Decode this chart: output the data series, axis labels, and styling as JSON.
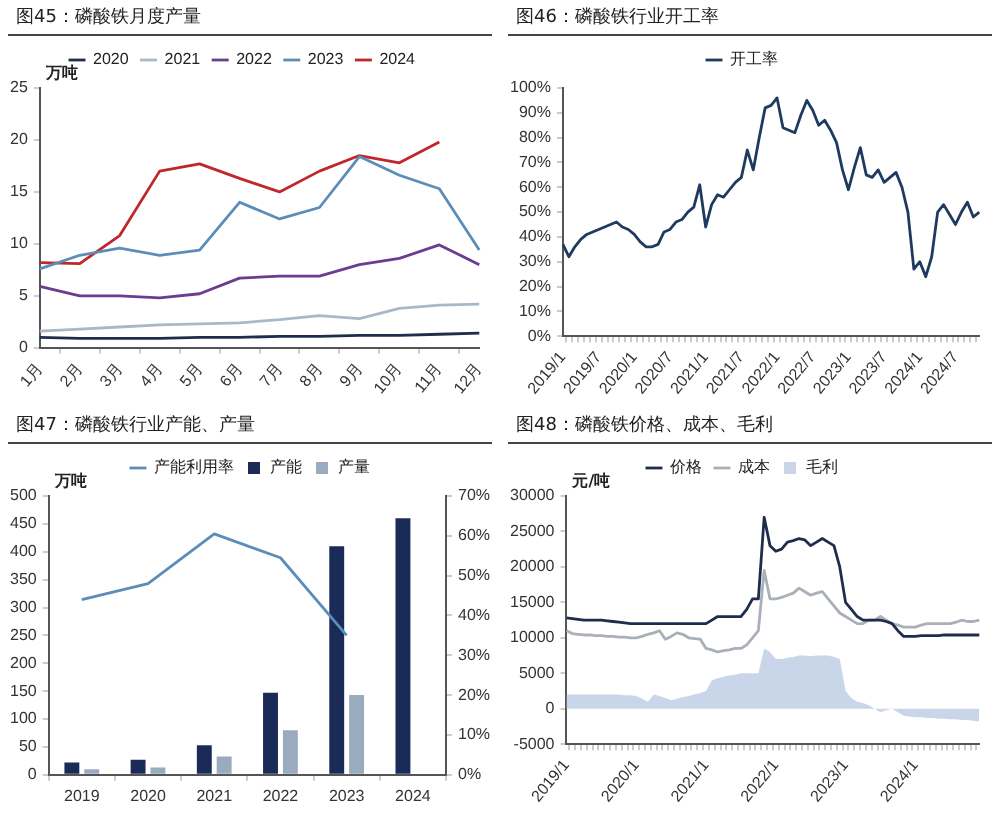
{
  "chart_data": [
    {
      "type": "line",
      "title": "图45：磷酸铁月度产量",
      "ylabel": "万吨",
      "categories": [
        "1月",
        "2月",
        "3月",
        "4月",
        "5月",
        "6月",
        "7月",
        "8月",
        "9月",
        "10月",
        "11月",
        "12月"
      ],
      "ylim": [
        0,
        25
      ],
      "yticks": [
        0,
        5,
        10,
        15,
        20,
        25
      ],
      "grid": false,
      "legend": "top",
      "marker": "none",
      "series": [
        {
          "name": "2020",
          "color": "#1f2d4d",
          "values": [
            1.0,
            0.9,
            0.9,
            0.9,
            1.0,
            1.0,
            1.1,
            1.1,
            1.2,
            1.2,
            1.3,
            1.4
          ]
        },
        {
          "name": "2021",
          "color": "#a9b8c8",
          "values": [
            1.6,
            1.8,
            2.0,
            2.2,
            2.3,
            2.4,
            2.7,
            3.1,
            2.8,
            3.8,
            4.1,
            4.2
          ]
        },
        {
          "name": "2022",
          "color": "#6a3d8f",
          "values": [
            5.9,
            5.0,
            5.0,
            4.8,
            5.2,
            6.7,
            6.9,
            6.9,
            8.0,
            8.6,
            9.9,
            8.0
          ]
        },
        {
          "name": "2023",
          "color": "#5b8db8",
          "values": [
            7.6,
            8.9,
            9.6,
            8.9,
            9.4,
            14.0,
            12.4,
            13.5,
            18.4,
            16.6,
            15.3,
            9.4
          ]
        },
        {
          "name": "2024",
          "color": "#c0272d",
          "values": [
            8.2,
            8.1,
            10.8,
            17.0,
            17.7,
            16.3,
            15.0,
            17.0,
            18.5,
            17.8,
            19.8,
            null
          ]
        }
      ]
    },
    {
      "type": "line",
      "title": "图46：磷酸铁行业开工率",
      "categories": [
        "2019/1",
        null,
        null,
        null,
        null,
        null,
        "2019/7",
        null,
        null,
        null,
        null,
        null,
        "2020/1",
        null,
        null,
        null,
        null,
        null,
        "2020/7",
        null,
        null,
        null,
        null,
        null,
        "2021/1",
        null,
        null,
        null,
        null,
        null,
        "2021/7",
        null,
        null,
        null,
        null,
        null,
        "2022/1",
        null,
        null,
        null,
        null,
        null,
        "2022/7",
        null,
        null,
        null,
        null,
        null,
        "2023/1",
        null,
        null,
        null,
        null,
        null,
        "2023/7",
        null,
        null,
        null,
        null,
        null,
        "2024/1",
        null,
        null,
        null,
        null,
        null,
        "2024/7",
        null,
        null,
        null,
        null
      ],
      "ylim": [
        0,
        100
      ],
      "yticks": [
        {
          "value": 0,
          "label": "0%"
        },
        {
          "value": 10,
          "label": "10%"
        },
        {
          "value": 20,
          "label": "20%"
        },
        {
          "value": 30,
          "label": "30%"
        },
        {
          "value": 40,
          "label": "40%"
        },
        {
          "value": 50,
          "label": "50%"
        },
        {
          "value": 60,
          "label": "60%"
        },
        {
          "value": 70,
          "label": "70%"
        },
        {
          "value": 80,
          "label": "80%"
        },
        {
          "value": 90,
          "label": "90%"
        },
        {
          "value": 100,
          "label": "100%"
        }
      ],
      "grid": false,
      "legend": "top",
      "marker": "none",
      "series": [
        {
          "name": "开工率",
          "color": "#1f3a5f",
          "values": [
            37,
            32,
            36,
            39,
            41,
            42,
            43,
            44,
            45,
            46,
            44,
            43,
            41,
            38,
            36,
            36,
            37,
            42,
            43,
            46,
            47,
            50,
            52,
            61,
            44,
            53,
            57,
            56,
            59,
            62,
            64,
            75,
            67,
            80,
            92,
            93,
            96,
            84,
            83,
            82,
            89,
            95,
            91,
            85,
            87,
            83,
            78,
            67,
            59,
            68,
            76,
            65,
            64,
            67,
            62,
            64,
            66,
            60,
            50,
            27,
            30,
            24,
            32,
            50,
            53,
            49,
            45,
            50,
            54,
            48,
            50
          ]
        }
      ]
    },
    {
      "type": "bar",
      "title": "图47：磷酸铁行业产能、产量",
      "ylabel": "万吨",
      "categories": [
        "2019",
        "2020",
        "2021",
        "2022",
        "2023",
        "2024"
      ],
      "ylim": [
        0,
        500
      ],
      "yticks": [
        0,
        50,
        100,
        150,
        200,
        250,
        300,
        350,
        400,
        450,
        500
      ],
      "y2lim": [
        0,
        70
      ],
      "y2ticks": [
        {
          "value": 0,
          "label": "0%"
        },
        {
          "value": 10,
          "label": "10%"
        },
        {
          "value": 20,
          "label": "20%"
        },
        {
          "value": 30,
          "label": "30%"
        },
        {
          "value": 40,
          "label": "40%"
        },
        {
          "value": 50,
          "label": "50%"
        },
        {
          "value": 60,
          "label": "60%"
        },
        {
          "value": 70,
          "label": "70%"
        }
      ],
      "grid": false,
      "legend": "top",
      "marker": "none",
      "series": [
        {
          "name": "产能",
          "color": "#1a2b57",
          "values": [
            22,
            27,
            53,
            147,
            410,
            460
          ]
        },
        {
          "name": "产量",
          "color": "#9aaabf",
          "values": [
            10,
            13,
            33,
            80,
            143,
            null
          ]
        },
        {
          "name": "产能利用率",
          "type": "line",
          "axis": "y2",
          "color": "#5b8db8",
          "values": [
            44,
            48,
            60.5,
            54.5,
            35,
            null
          ]
        }
      ]
    },
    {
      "type": "line",
      "title": "图48：磷酸铁价格、成本、毛利",
      "ylabel": "元/吨",
      "categories": [
        "2019/1",
        null,
        null,
        null,
        null,
        null,
        null,
        null,
        null,
        null,
        null,
        null,
        "2020/1",
        null,
        null,
        null,
        null,
        null,
        null,
        null,
        null,
        null,
        null,
        null,
        "2021/1",
        null,
        null,
        null,
        null,
        null,
        null,
        null,
        null,
        null,
        null,
        null,
        "2022/1",
        null,
        null,
        null,
        null,
        null,
        null,
        null,
        null,
        null,
        null,
        null,
        "2023/1",
        null,
        null,
        null,
        null,
        null,
        null,
        null,
        null,
        null,
        null,
        null,
        "2024/1",
        null,
        null,
        null,
        null,
        null,
        null,
        null,
        null,
        null,
        null,
        null
      ],
      "ylim": [
        -5000,
        30000
      ],
      "yticks": [
        -5000,
        0,
        5000,
        10000,
        15000,
        20000,
        25000,
        30000
      ],
      "grid": false,
      "legend": "top",
      "marker": "none",
      "series": [
        {
          "name": "毛利",
          "type": "area",
          "color": "#c9d6ea",
          "values": [
            2000,
            2000,
            2000,
            2000,
            2000,
            2000,
            2000,
            2000,
            2000,
            2000,
            1900,
            1900,
            1800,
            1400,
            1000,
            2000,
            1800,
            1500,
            1200,
            1400,
            1600,
            1800,
            2000,
            2200,
            2500,
            4000,
            4300,
            4500,
            4700,
            4800,
            5000,
            5000,
            5000,
            5000,
            8500,
            8000,
            7000,
            7000,
            7200,
            7300,
            7500,
            7500,
            7400,
            7500,
            7500,
            7500,
            7300,
            7000,
            2500,
            1500,
            1000,
            800,
            500,
            0,
            -500,
            -200,
            0,
            -500,
            -1000,
            -1100,
            -1200,
            -1200,
            -1300,
            -1300,
            -1400,
            -1400,
            -1500,
            -1500,
            -1600,
            -1600,
            -1700,
            -1800
          ]
        },
        {
          "name": "价格",
          "color": "#1f2d4d",
          "values": [
            12800,
            12700,
            12600,
            12500,
            12500,
            12500,
            12500,
            12400,
            12300,
            12200,
            12100,
            12000,
            12000,
            12000,
            12000,
            12000,
            12000,
            12000,
            12000,
            12000,
            12000,
            12000,
            12000,
            12000,
            12000,
            12500,
            13000,
            13000,
            13000,
            13000,
            13000,
            14000,
            15500,
            15500,
            27000,
            23000,
            22200,
            22500,
            23500,
            23700,
            24000,
            23800,
            23000,
            23500,
            24000,
            23500,
            23000,
            20000,
            15000,
            14000,
            13000,
            12500,
            12500,
            12500,
            12500,
            12300,
            12000,
            11000,
            10200,
            10200,
            10200,
            10300,
            10300,
            10300,
            10300,
            10400,
            10400,
            10400,
            10400,
            10400,
            10400,
            10400
          ]
        },
        {
          "name": "成本",
          "color": "#a9b0b8",
          "values": [
            11000,
            10600,
            10500,
            10400,
            10400,
            10300,
            10300,
            10200,
            10200,
            10100,
            10100,
            10000,
            10000,
            10200,
            10500,
            10700,
            11000,
            9800,
            10200,
            10700,
            10500,
            10000,
            9900,
            9800,
            8500,
            8300,
            8000,
            8200,
            8300,
            8500,
            8500,
            9000,
            10000,
            11000,
            19500,
            15500,
            15500,
            15700,
            16000,
            16300,
            17000,
            16500,
            16000,
            16300,
            16500,
            15500,
            14500,
            13500,
            13000,
            12500,
            12000,
            12000,
            12500,
            12500,
            13000,
            12500,
            12000,
            11800,
            11500,
            11500,
            11500,
            11800,
            12000,
            12000,
            12000,
            12000,
            12000,
            12200,
            12500,
            12300,
            12300,
            12500
          ]
        }
      ]
    }
  ]
}
